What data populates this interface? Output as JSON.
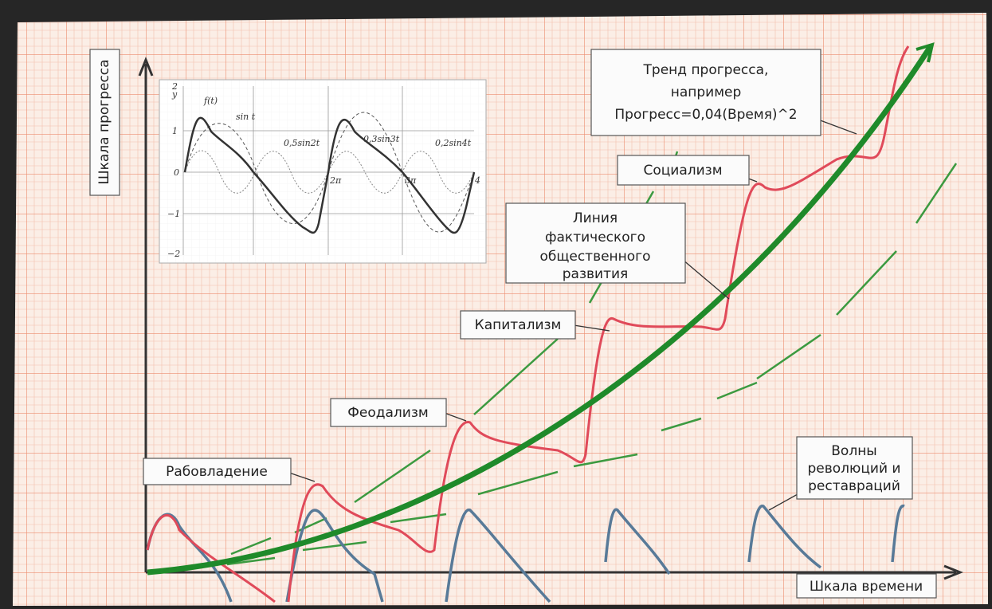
{
  "axes": {
    "y_label": "Шкала прогресса",
    "x_label": "Шкала времени"
  },
  "callouts": {
    "trend": [
      "Тренд прогресса,",
      "например",
      "Прогресс=0,04(Время)^2"
    ],
    "socialism": [
      "Социализм"
    ],
    "actual_line": [
      "Линия",
      "фактического",
      "общественного",
      "развития"
    ],
    "capitalism": [
      "Капитализм"
    ],
    "feudalism": [
      "Феодализм"
    ],
    "slavery": [
      "Рабовладение"
    ],
    "waves": [
      "Волны",
      "революций и",
      "реставраций"
    ]
  },
  "inset": {
    "y_label": "y",
    "yticks": [
      "2",
      "1",
      "0",
      "−1",
      "−2"
    ],
    "xticks": [
      "2π",
      "3π",
      "4"
    ],
    "curve_labels": [
      "f(t)",
      "sin t",
      "0,5sin2t",
      "0,3sin3t",
      "0,2sin4t"
    ]
  }
}
